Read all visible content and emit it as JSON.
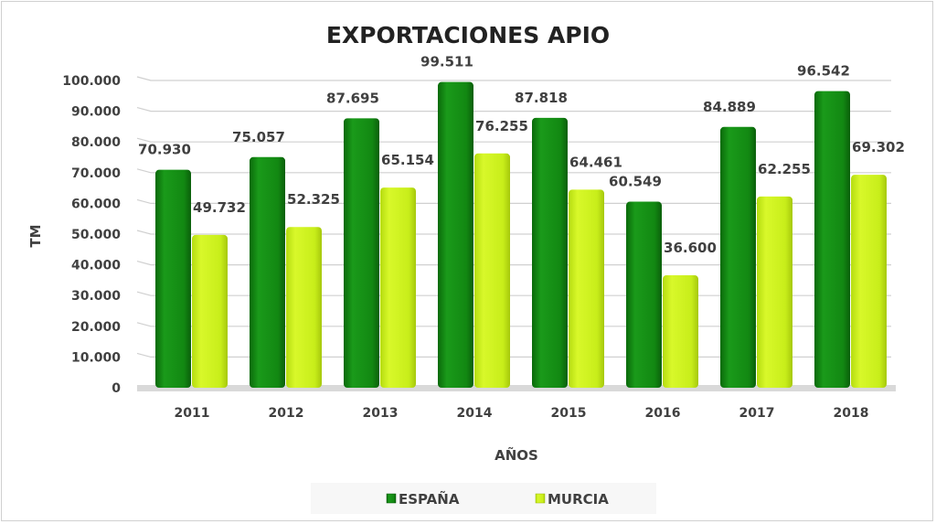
{
  "chart_data": {
    "type": "bar",
    "title": "EXPORTACIONES APIO",
    "xlabel": "AÑOS",
    "ylabel": "TM",
    "categories": [
      "2011",
      "2012",
      "2013",
      "2014",
      "2015",
      "2016",
      "2017",
      "2018"
    ],
    "series": [
      {
        "name": "ESPAÑA",
        "color": "#138a13",
        "values": [
          70930,
          75057,
          87695,
          99511,
          87818,
          60549,
          84889,
          96542
        ],
        "labels": [
          "70.930",
          "75.057",
          "87.695",
          "99.511",
          "87.818",
          "60.549",
          "84.889",
          "96.542"
        ]
      },
      {
        "name": "MURCIA",
        "color": "#c8ee1a",
        "values": [
          49732,
          52325,
          65154,
          76255,
          64461,
          36600,
          62255,
          69302
        ],
        "labels": [
          "49.732",
          "52.325",
          "65.154",
          "76.255",
          "64.461",
          "36.600",
          "62.255",
          "69.302"
        ]
      }
    ],
    "ylim": [
      0,
      100000
    ],
    "yticks": [
      0,
      10000,
      20000,
      30000,
      40000,
      50000,
      60000,
      70000,
      80000,
      90000,
      100000
    ],
    "ytick_labels": [
      "0",
      "10.000",
      "20.000",
      "30.000",
      "40.000",
      "50.000",
      "60.000",
      "70.000",
      "80.000",
      "90.000",
      "100.000"
    ],
    "grid": true,
    "legend": "bottom"
  }
}
